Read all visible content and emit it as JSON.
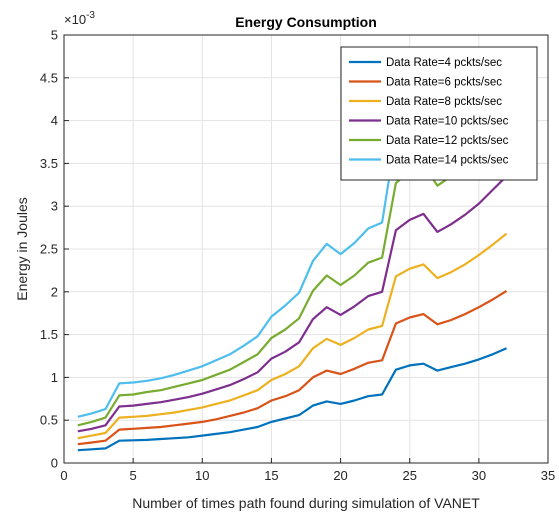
{
  "chart_data": {
    "type": "line",
    "title": "Energy Consumption",
    "xlabel": "Number of times path found during simulation of VANET",
    "ylabel": "Energy in Joules",
    "y_exponent_label": "× 10^-3",
    "xlim": [
      0,
      35
    ],
    "ylim": [
      0,
      5
    ],
    "xticks": [
      0,
      5,
      10,
      15,
      20,
      25,
      30,
      35
    ],
    "yticks": [
      0,
      0.5,
      1,
      1.5,
      2,
      2.5,
      3,
      3.5,
      4,
      4.5,
      5
    ],
    "grid": true,
    "legend_position": "top-right",
    "x": [
      1,
      2,
      3,
      4,
      5,
      6,
      7,
      8,
      9,
      10,
      11,
      12,
      13,
      14,
      15,
      16,
      17,
      18,
      19,
      20,
      21,
      22,
      23,
      24,
      25,
      26,
      27,
      28,
      29,
      30,
      31,
      32
    ],
    "series": [
      {
        "name": "Data Rate=4 pckts/sec",
        "color": "#0072BD",
        "values": [
          0.15,
          0.16,
          0.17,
          0.26,
          0.265,
          0.27,
          0.28,
          0.29,
          0.3,
          0.32,
          0.34,
          0.36,
          0.39,
          0.42,
          0.48,
          0.52,
          0.56,
          0.67,
          0.72,
          0.69,
          0.73,
          0.78,
          0.8,
          1.09,
          1.14,
          1.16,
          1.08,
          1.12,
          1.16,
          1.21,
          1.27,
          1.34
        ]
      },
      {
        "name": "Data Rate=6 pckts/sec",
        "color": "#D95319",
        "values": [
          0.22,
          0.24,
          0.26,
          0.39,
          0.4,
          0.41,
          0.42,
          0.44,
          0.46,
          0.48,
          0.51,
          0.55,
          0.59,
          0.64,
          0.73,
          0.78,
          0.85,
          1.0,
          1.08,
          1.04,
          1.1,
          1.17,
          1.2,
          1.63,
          1.7,
          1.74,
          1.62,
          1.67,
          1.74,
          1.82,
          1.91,
          2.01
        ]
      },
      {
        "name": "Data Rate=8 pckts/sec",
        "color": "#EDB120",
        "values": [
          0.29,
          0.32,
          0.35,
          0.53,
          0.54,
          0.55,
          0.57,
          0.59,
          0.62,
          0.65,
          0.69,
          0.73,
          0.79,
          0.85,
          0.97,
          1.04,
          1.13,
          1.34,
          1.45,
          1.38,
          1.46,
          1.56,
          1.6,
          2.18,
          2.27,
          2.32,
          2.16,
          2.23,
          2.32,
          2.43,
          2.55,
          2.68
        ]
      },
      {
        "name": "Data Rate=10 pckts/sec",
        "color": "#7E2F8E",
        "values": [
          0.37,
          0.4,
          0.44,
          0.66,
          0.67,
          0.69,
          0.71,
          0.74,
          0.77,
          0.81,
          0.86,
          0.91,
          0.98,
          1.06,
          1.22,
          1.3,
          1.41,
          1.68,
          1.82,
          1.73,
          1.83,
          1.95,
          2.0,
          2.72,
          2.84,
          2.91,
          2.7,
          2.79,
          2.9,
          3.03,
          3.19,
          3.35
        ]
      },
      {
        "name": "Data Rate=12 pckts/sec",
        "color": "#77AC30",
        "values": [
          0.44,
          0.48,
          0.53,
          0.79,
          0.8,
          0.83,
          0.85,
          0.89,
          0.93,
          0.97,
          1.03,
          1.09,
          1.18,
          1.27,
          1.46,
          1.56,
          1.69,
          2.01,
          2.19,
          2.08,
          2.19,
          2.34,
          2.4,
          3.27,
          3.41,
          3.49,
          3.24,
          3.35,
          3.48,
          3.64,
          3.82,
          4.02
        ]
      },
      {
        "name": "Data Rate=14 pckts/sec",
        "color": "#4DBEEE",
        "values": [
          0.54,
          0.58,
          0.63,
          0.93,
          0.94,
          0.96,
          0.99,
          1.03,
          1.08,
          1.13,
          1.2,
          1.27,
          1.37,
          1.48,
          1.71,
          1.84,
          1.99,
          2.36,
          2.56,
          2.44,
          2.57,
          2.74,
          2.81,
          3.82,
          3.98,
          4.07,
          3.78,
          3.91,
          4.06,
          4.25,
          4.46,
          4.69
        ]
      }
    ]
  }
}
